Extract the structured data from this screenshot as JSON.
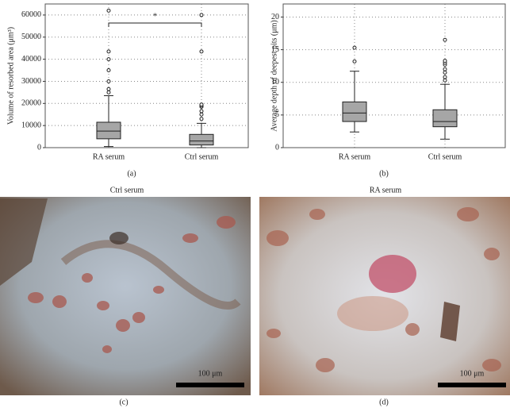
{
  "chart_data": [
    {
      "type": "box",
      "ylabel": "Volume of resorbed area (μm³)",
      "categories": [
        "RA serum",
        "Ctrl serum"
      ],
      "boxes": [
        {
          "low": 500,
          "q1": 4000,
          "median": 7500,
          "q3": 11500,
          "high": 23500,
          "outliers": [
            25000,
            26500,
            30000,
            35000,
            40000,
            43500,
            62000
          ]
        },
        {
          "low": 0,
          "q1": 1200,
          "median": 3000,
          "q3": 6000,
          "high": 11000,
          "outliers": [
            13000,
            15000,
            16500,
            18500,
            19000,
            19500,
            43500,
            60000
          ]
        }
      ],
      "color": "#a6a6a6",
      "ylim": [
        0,
        65000
      ],
      "yticks": [
        0,
        10000,
        20000,
        30000,
        40000,
        50000,
        60000
      ],
      "grid": true,
      "annotation": "*",
      "panel_label": "(a)"
    },
    {
      "type": "box",
      "ylabel": "Average depth of deepest pits (μm)",
      "categories": [
        "RA serum",
        "Ctrl serum"
      ],
      "boxes": [
        {
          "low": 2.4,
          "q1": 4,
          "median": 5.3,
          "q3": 7,
          "high": 11.7,
          "outliers": [
            13.2,
            15.3
          ]
        },
        {
          "low": 1.3,
          "q1": 3.2,
          "median": 4,
          "q3": 5.8,
          "high": 9.7,
          "outliers": [
            10.3,
            10.8,
            11.5,
            12,
            12.7,
            13,
            13.3,
            16.5
          ]
        }
      ],
      "color": "#a6a6a6",
      "ylim": [
        0,
        22
      ],
      "yticks": [
        0,
        5,
        10,
        15,
        20
      ],
      "grid": true,
      "panel_label": "(b)"
    }
  ],
  "images": [
    {
      "title": "Ctrl serum",
      "scale_bar": "100 μm",
      "panel_label": "(c)"
    },
    {
      "title": "RA serum",
      "scale_bar": "100 μm",
      "panel_label": "(d)"
    }
  ]
}
